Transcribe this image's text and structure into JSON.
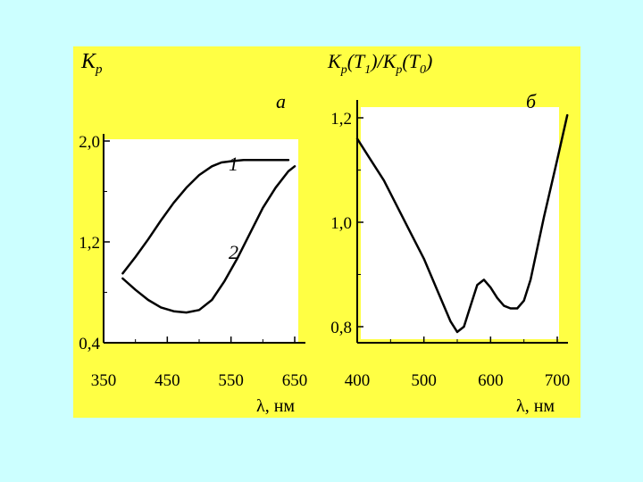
{
  "colors": {
    "background": "#ccffff",
    "panel": "#ffff44",
    "plot_area": "#ffffff",
    "curve": "#000000"
  },
  "chart_data": [
    {
      "type": "line",
      "panel_label": "а",
      "ylabel": "K",
      "ylabel_sub": "p",
      "xlabel": "λ, нм",
      "x_ticks": [
        350,
        450,
        550,
        650
      ],
      "y_ticks": [
        0.4,
        1.2,
        2.0
      ],
      "y_tick_labels": [
        "0,4",
        "1,2",
        "2,0"
      ],
      "xlim": [
        350,
        660
      ],
      "ylim": [
        0.4,
        2.2
      ],
      "series": [
        {
          "name": "1",
          "x": [
            380,
            400,
            420,
            440,
            460,
            480,
            500,
            520,
            535,
            550,
            570,
            590,
            610,
            630,
            640
          ],
          "y": [
            0.95,
            1.08,
            1.22,
            1.37,
            1.51,
            1.63,
            1.73,
            1.8,
            1.83,
            1.84,
            1.85,
            1.85,
            1.85,
            1.85,
            1.85
          ]
        },
        {
          "name": "2",
          "x": [
            380,
            400,
            420,
            440,
            460,
            480,
            500,
            520,
            540,
            560,
            580,
            600,
            620,
            640,
            650
          ],
          "y": [
            0.91,
            0.82,
            0.74,
            0.68,
            0.65,
            0.64,
            0.66,
            0.74,
            0.89,
            1.07,
            1.27,
            1.47,
            1.63,
            1.76,
            1.8
          ]
        }
      ]
    },
    {
      "type": "line",
      "panel_label": "б",
      "ylabel": "K",
      "ylabel_parts": [
        "K",
        "p",
        "(T",
        "1",
        ")/K",
        "p",
        "(T",
        "0",
        ")"
      ],
      "xlabel": "λ, нм",
      "x_ticks": [
        400,
        500,
        600,
        700
      ],
      "y_ticks": [
        0.8,
        1.0,
        1.2
      ],
      "y_tick_labels": [
        "0,8",
        "1,0",
        "1,2"
      ],
      "xlim": [
        395,
        720
      ],
      "ylim": [
        0.77,
        1.235
      ],
      "series": [
        {
          "name": "",
          "x": [
            400,
            420,
            440,
            460,
            480,
            500,
            520,
            540,
            550,
            560,
            570,
            580,
            590,
            600,
            610,
            620,
            630,
            640,
            650,
            660,
            670,
            680,
            700,
            715
          ],
          "y": [
            1.16,
            1.12,
            1.08,
            1.03,
            0.98,
            0.93,
            0.87,
            0.81,
            0.79,
            0.8,
            0.84,
            0.88,
            0.89,
            0.875,
            0.855,
            0.84,
            0.835,
            0.835,
            0.85,
            0.89,
            0.95,
            1.01,
            1.12,
            1.205
          ]
        }
      ]
    }
  ]
}
